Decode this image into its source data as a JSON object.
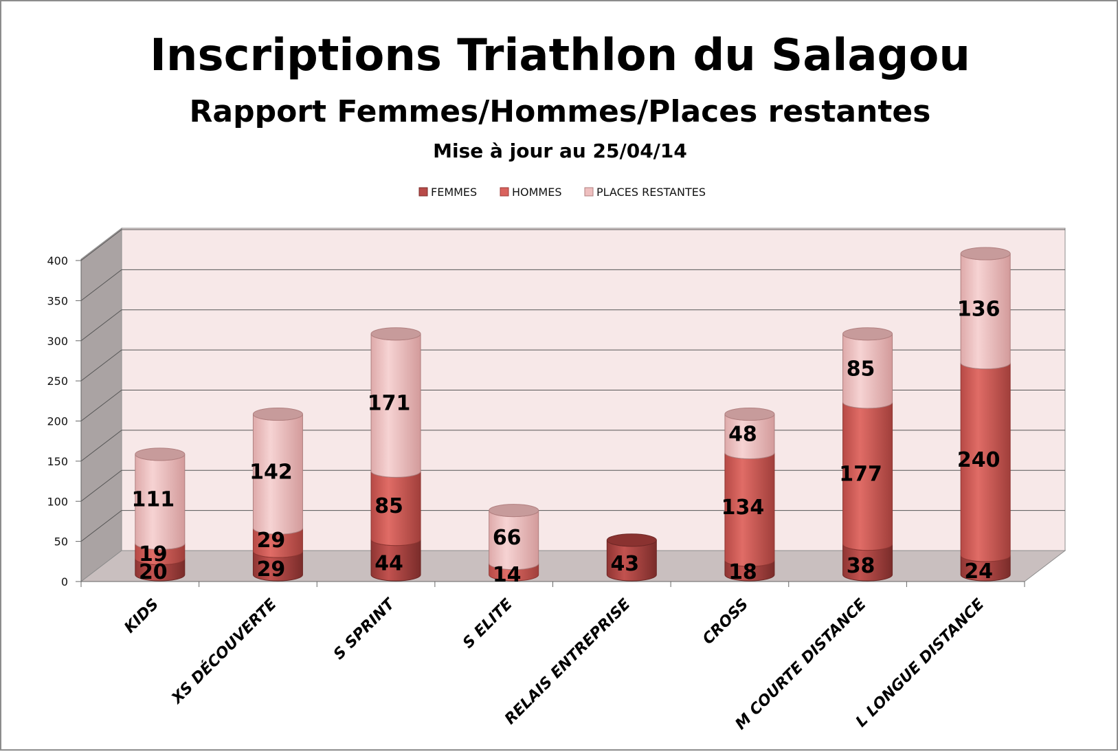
{
  "chart_data": {
    "type": "bar",
    "stacked": true,
    "three_d": true,
    "title": "Inscriptions Triathlon du Salagou",
    "subtitle": "Rapport Femmes/Hommes/Places restantes",
    "subtitle2": "Mise à jour au 25/04/14",
    "categories": [
      "KIDS",
      "XS DÉCOUVERTE",
      "S SPRINT",
      "S ELITE",
      "RELAIS ENTREPRISE",
      "CROSS",
      "M COURTE DISTANCE",
      "L LONGUE DISTANCE"
    ],
    "series": [
      {
        "name": "FEMMES",
        "color": "#b84a48",
        "values": [
          20,
          29,
          44,
          0,
          43,
          18,
          38,
          24
        ]
      },
      {
        "name": "HOMMES",
        "color": "#d9625d",
        "values": [
          19,
          29,
          85,
          14,
          0,
          134,
          177,
          240
        ]
      },
      {
        "name": "PLACES RESTANTES",
        "color": "#eebfbf",
        "values": [
          111,
          142,
          171,
          66,
          0,
          48,
          85,
          136
        ]
      }
    ],
    "labels": [
      [
        "20",
        "19",
        "111"
      ],
      [
        "29",
        "29",
        "142"
      ],
      [
        "44",
        "85",
        "171"
      ],
      [
        "",
        "14",
        "66"
      ],
      [
        "43",
        "",
        ""
      ],
      [
        "18",
        "134",
        "48"
      ],
      [
        "38",
        "177",
        "85"
      ],
      [
        "24",
        "240",
        "136"
      ]
    ],
    "yticks": [
      "0",
      "50",
      "100",
      "150",
      "200",
      "250",
      "300",
      "350",
      "400"
    ],
    "ylim": [
      0,
      400
    ],
    "grid": true,
    "legend_position": "top",
    "wall_color": "#f7e8e8",
    "floor_color": "#c9bfbf",
    "side_wall_color": "#aaa3a3"
  }
}
